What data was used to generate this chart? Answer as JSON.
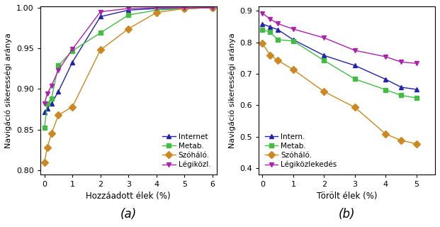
{
  "panel_a": {
    "xlabel": "Hozzáadott élek (%)",
    "ylabel": "Navigáció sikerességi aránya",
    "ylim": [
      0.795,
      1.002
    ],
    "xlim": [
      -0.15,
      6.15
    ],
    "xticks": [
      0,
      1,
      2,
      3,
      4,
      5,
      6
    ],
    "yticks": [
      0.8,
      0.85,
      0.9,
      0.95,
      1.0
    ],
    "label_a": "(a)",
    "series": {
      "Internet": {
        "x": [
          0,
          0.1,
          0.25,
          0.5,
          1,
          2,
          3,
          4,
          5,
          6
        ],
        "y": [
          0.872,
          0.876,
          0.882,
          0.897,
          0.933,
          0.989,
          0.997,
          0.999,
          0.999,
          1.0
        ],
        "color": "#2222AA",
        "marker": "^",
        "markersize": 5
      },
      "Metab.": {
        "x": [
          0,
          0.1,
          0.25,
          0.5,
          1,
          2,
          3,
          4,
          5,
          6
        ],
        "y": [
          0.852,
          0.882,
          0.888,
          0.929,
          0.947,
          0.969,
          0.991,
          0.997,
          0.999,
          1.0
        ],
        "color": "#44BB44",
        "marker": "s",
        "markersize": 5
      },
      "Szóháló.": {
        "x": [
          0,
          0.1,
          0.25,
          0.5,
          1,
          2,
          3,
          4,
          5,
          6
        ],
        "y": [
          0.81,
          0.828,
          0.845,
          0.868,
          0.878,
          0.948,
          0.974,
          0.994,
          0.999,
          1.0
        ],
        "color": "#CC8822",
        "marker": "D",
        "markersize": 5
      },
      "Légiközl.": {
        "x": [
          0,
          0.1,
          0.25,
          0.5,
          1,
          2,
          3,
          4,
          5,
          6
        ],
        "y": [
          0.882,
          0.894,
          0.904,
          0.923,
          0.949,
          0.995,
          0.999,
          1.0,
          1.0,
          1.0
        ],
        "color": "#AA22AA",
        "marker": "v",
        "markersize": 5
      }
    }
  },
  "panel_b": {
    "xlabel": "Törölt élek (%)",
    "ylabel": "Navigáció sikerességi aránya",
    "ylim": [
      0.38,
      0.915
    ],
    "xlim": [
      -0.12,
      5.6
    ],
    "xticks": [
      0,
      1,
      2,
      3,
      4,
      5
    ],
    "yticks": [
      0.4,
      0.5,
      0.6,
      0.7,
      0.8,
      0.9
    ],
    "label_b": "(b)",
    "series": {
      "Intern.": {
        "x": [
          0,
          0.25,
          0.5,
          1,
          2,
          3,
          4,
          4.5,
          5
        ],
        "y": [
          0.858,
          0.849,
          0.84,
          0.808,
          0.758,
          0.726,
          0.682,
          0.657,
          0.65
        ],
        "color": "#2222AA",
        "marker": "^",
        "markersize": 5
      },
      "Metab.": {
        "x": [
          0,
          0.25,
          0.5,
          1,
          2,
          3,
          4,
          4.5,
          5
        ],
        "y": [
          0.84,
          0.832,
          0.808,
          0.804,
          0.742,
          0.683,
          0.649,
          0.631,
          0.623
        ],
        "color": "#44BB44",
        "marker": "s",
        "markersize": 5
      },
      "Szóháló.": {
        "x": [
          0,
          0.25,
          0.5,
          1,
          2,
          3,
          4,
          4.5,
          5
        ],
        "y": [
          0.796,
          0.759,
          0.742,
          0.713,
          0.643,
          0.593,
          0.508,
          0.488,
          0.477
        ],
        "color": "#CC8822",
        "marker": "D",
        "markersize": 5
      },
      "Légiközlekedés": {
        "x": [
          0,
          0.25,
          0.5,
          1,
          2,
          3,
          4,
          4.5,
          5
        ],
        "y": [
          0.892,
          0.874,
          0.859,
          0.842,
          0.814,
          0.774,
          0.754,
          0.737,
          0.733
        ],
        "color": "#AA22AA",
        "marker": "v",
        "markersize": 5
      }
    }
  },
  "figure_bg": "#ffffff",
  "axes_bg": "#ffffff"
}
